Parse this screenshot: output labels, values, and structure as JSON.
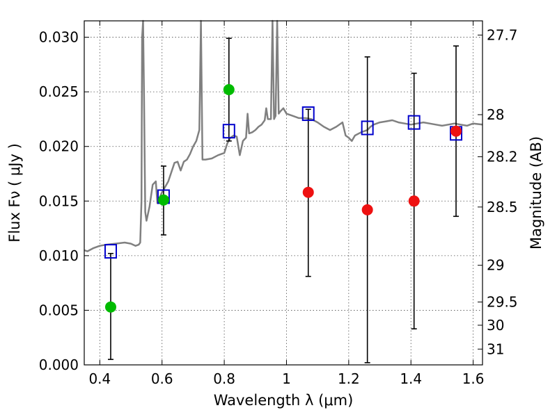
{
  "chart_data": {
    "type": "scatter",
    "xlabel": "Wavelength  λ (μm)",
    "ylabel": "Flux  Fν  ( μJy )",
    "ylabel_right": "Magnitude (AB)",
    "xlim": [
      0.35,
      1.63
    ],
    "ylim": [
      0.0,
      0.0315
    ],
    "grid": true,
    "x_ticks": [
      {
        "v": 0.4,
        "label": "0.4"
      },
      {
        "v": 0.6,
        "label": "0.6"
      },
      {
        "v": 0.8,
        "label": "0.8"
      },
      {
        "v": 1.0,
        "label": "1"
      },
      {
        "v": 1.2,
        "label": "1.2"
      },
      {
        "v": 1.4,
        "label": "1.4"
      },
      {
        "v": 1.6,
        "label": "1.6"
      }
    ],
    "y_ticks": [
      {
        "v": 0.0,
        "label": "0.000"
      },
      {
        "v": 0.005,
        "label": "0.005"
      },
      {
        "v": 0.01,
        "label": "0.010"
      },
      {
        "v": 0.015,
        "label": "0.015"
      },
      {
        "v": 0.02,
        "label": "0.020"
      },
      {
        "v": 0.025,
        "label": "0.025"
      },
      {
        "v": 0.03,
        "label": "0.030"
      }
    ],
    "mag_ticks": [
      {
        "mag": 27.7,
        "label": "27.7"
      },
      {
        "mag": 28,
        "label": "28"
      },
      {
        "mag": 28.2,
        "label": "28.2"
      },
      {
        "mag": 28.5,
        "label": "28.5"
      },
      {
        "mag": 29,
        "label": "29"
      },
      {
        "mag": 29.5,
        "label": "29.5"
      },
      {
        "mag": 30,
        "label": "30"
      },
      {
        "mag": 31,
        "label": "31"
      }
    ],
    "colors": {
      "spectrum": "#808080",
      "model": "#0000cc",
      "detections": "#00bb00",
      "upper": "#ee1111",
      "errorbar": "#000000"
    },
    "spectrum": [
      [
        0.35,
        0.0105
      ],
      [
        0.36,
        0.0104
      ],
      [
        0.38,
        0.0107
      ],
      [
        0.4,
        0.0109
      ],
      [
        0.42,
        0.011
      ],
      [
        0.45,
        0.0111
      ],
      [
        0.48,
        0.0112
      ],
      [
        0.5,
        0.0111
      ],
      [
        0.515,
        0.0109
      ],
      [
        0.525,
        0.011
      ],
      [
        0.53,
        0.0112
      ],
      [
        0.534,
        0.015
      ],
      [
        0.536,
        0.03
      ],
      [
        0.539,
        0.0318
      ],
      [
        0.542,
        0.025
      ],
      [
        0.546,
        0.014
      ],
      [
        0.55,
        0.0132
      ],
      [
        0.56,
        0.0145
      ],
      [
        0.57,
        0.0165
      ],
      [
        0.58,
        0.0168
      ],
      [
        0.585,
        0.0148
      ],
      [
        0.595,
        0.0155
      ],
      [
        0.6,
        0.0158
      ],
      [
        0.62,
        0.0168
      ],
      [
        0.64,
        0.0185
      ],
      [
        0.65,
        0.0186
      ],
      [
        0.66,
        0.0178
      ],
      [
        0.67,
        0.0186
      ],
      [
        0.68,
        0.0188
      ],
      [
        0.69,
        0.0193
      ],
      [
        0.7,
        0.02
      ],
      [
        0.71,
        0.0205
      ],
      [
        0.72,
        0.0215
      ],
      [
        0.725,
        0.0318
      ],
      [
        0.73,
        0.0188
      ],
      [
        0.74,
        0.0188
      ],
      [
        0.76,
        0.0189
      ],
      [
        0.78,
        0.0192
      ],
      [
        0.8,
        0.0194
      ],
      [
        0.81,
        0.0203
      ],
      [
        0.82,
        0.0208
      ],
      [
        0.83,
        0.021
      ],
      [
        0.84,
        0.0209
      ],
      [
        0.85,
        0.0192
      ],
      [
        0.86,
        0.0205
      ],
      [
        0.87,
        0.0208
      ],
      [
        0.875,
        0.023
      ],
      [
        0.88,
        0.0212
      ],
      [
        0.89,
        0.0213
      ],
      [
        0.9,
        0.0215
      ],
      [
        0.91,
        0.0218
      ],
      [
        0.92,
        0.022
      ],
      [
        0.93,
        0.0224
      ],
      [
        0.935,
        0.0235
      ],
      [
        0.94,
        0.0225
      ],
      [
        0.95,
        0.0225
      ],
      [
        0.955,
        0.0318
      ],
      [
        0.96,
        0.0225
      ],
      [
        0.965,
        0.0228
      ],
      [
        0.97,
        0.0318
      ],
      [
        0.975,
        0.023
      ],
      [
        0.98,
        0.0232
      ],
      [
        0.99,
        0.0235
      ],
      [
        1.0,
        0.023
      ],
      [
        1.02,
        0.0228
      ],
      [
        1.04,
        0.0226
      ],
      [
        1.06,
        0.0226
      ],
      [
        1.08,
        0.0225
      ],
      [
        1.1,
        0.0222
      ],
      [
        1.12,
        0.0218
      ],
      [
        1.14,
        0.0215
      ],
      [
        1.16,
        0.0218
      ],
      [
        1.18,
        0.0222
      ],
      [
        1.19,
        0.021
      ],
      [
        1.2,
        0.0208
      ],
      [
        1.21,
        0.0205
      ],
      [
        1.22,
        0.021
      ],
      [
        1.24,
        0.0213
      ],
      [
        1.26,
        0.0215
      ],
      [
        1.27,
        0.0218
      ],
      [
        1.28,
        0.022
      ],
      [
        1.3,
        0.0222
      ],
      [
        1.32,
        0.0223
      ],
      [
        1.34,
        0.0224
      ],
      [
        1.36,
        0.0222
      ],
      [
        1.38,
        0.0221
      ],
      [
        1.4,
        0.022
      ],
      [
        1.42,
        0.0221
      ],
      [
        1.44,
        0.0222
      ],
      [
        1.46,
        0.0221
      ],
      [
        1.48,
        0.022
      ],
      [
        1.5,
        0.0219
      ],
      [
        1.52,
        0.022
      ],
      [
        1.54,
        0.0221
      ],
      [
        1.56,
        0.022
      ],
      [
        1.58,
        0.0219
      ],
      [
        1.6,
        0.0221
      ],
      [
        1.63,
        0.022
      ]
    ],
    "series": [
      {
        "marker": "open-square",
        "points": [
          [
            0.435,
            0.0104
          ],
          [
            0.605,
            0.0154
          ],
          [
            0.815,
            0.0214
          ],
          [
            1.07,
            0.023
          ],
          [
            1.26,
            0.0217
          ],
          [
            1.41,
            0.0222
          ],
          [
            1.545,
            0.0212
          ]
        ]
      },
      {
        "marker": "filled-circle-green",
        "points": [
          [
            0.435,
            0.0053
          ],
          [
            0.605,
            0.0151
          ],
          [
            0.815,
            0.0252
          ]
        ]
      },
      {
        "marker": "filled-circle-red",
        "points": [
          [
            1.07,
            0.0158
          ],
          [
            1.26,
            0.0142
          ],
          [
            1.41,
            0.015
          ],
          [
            1.545,
            0.0214
          ]
        ]
      }
    ],
    "errorbars": [
      {
        "x": 0.435,
        "low": 0.0005,
        "high": 0.0102
      },
      {
        "x": 0.605,
        "low": 0.0119,
        "high": 0.0182
      },
      {
        "x": 0.815,
        "low": 0.0205,
        "high": 0.0299
      },
      {
        "x": 1.07,
        "low": 0.0081,
        "high": 0.0234
      },
      {
        "x": 1.26,
        "low": 0.0002,
        "high": 0.0282
      },
      {
        "x": 1.41,
        "low": 0.0033,
        "high": 0.0267
      },
      {
        "x": 1.545,
        "low": 0.0136,
        "high": 0.0292
      }
    ]
  }
}
